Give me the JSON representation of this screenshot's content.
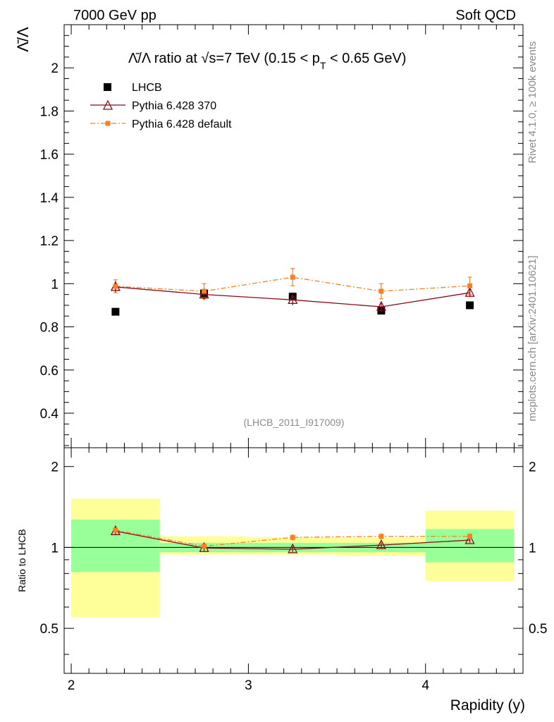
{
  "header": {
    "left": "7000 GeV pp",
    "right": "Soft QCD"
  },
  "side_labels": {
    "rivet": "Rivet 4.1.0, ≥ 100k events",
    "mcplots": "mcplots.cern.ch [arXiv:2401.10621]"
  },
  "watermark": "(LHCB_2011_I917009)",
  "colors": {
    "data": "#000000",
    "pythia370": "#8b0a1a",
    "pythia_default": "#f58025",
    "band_inner": "#99ff99",
    "band_outer": "#ffff99"
  },
  "chart_data": [
    {
      "type": "scatter",
      "title_parts": {
        "prefix": "Λ̄/Λ ratio at √s=7 TeV (0.15 < p",
        "subscript": "T",
        "suffix": " < 0.65 GeV)"
      },
      "ylabel": "Λ̄/Λ",
      "xlabel": "Rapidity (y)",
      "xlim": [
        1.96,
        4.55
      ],
      "ylim": [
        0.24,
        2.2
      ],
      "yticks": [
        0.4,
        0.6,
        0.8,
        1,
        1.2,
        1.4,
        1.6,
        1.8,
        2
      ],
      "ytick_labels": [
        "0.4",
        "0.6",
        "0.8",
        "1",
        "1.2",
        "1.4",
        "1.6",
        "1.8",
        "2"
      ],
      "legend": [
        "LHCB",
        "Pythia 6.428 370",
        "Pythia 6.428 default"
      ],
      "series": [
        {
          "name": "LHCB",
          "marker": "square",
          "x": [
            2.25,
            2.75,
            3.25,
            3.75,
            4.25
          ],
          "y": [
            0.87,
            0.955,
            0.94,
            0.875,
            0.9
          ]
        },
        {
          "name": "Pythia 6.428 370",
          "marker": "triangle",
          "x": [
            2.25,
            2.75,
            3.25,
            3.75,
            4.25
          ],
          "y": [
            0.985,
            0.95,
            0.925,
            0.893,
            0.958
          ],
          "err": [
            0.025,
            0.025,
            0.025,
            0.025,
            0.02
          ]
        },
        {
          "name": "Pythia 6.428 default",
          "marker": "square-dashed",
          "x": [
            2.25,
            2.75,
            3.25,
            3.75,
            4.25
          ],
          "y": [
            0.988,
            0.965,
            1.03,
            0.965,
            0.99
          ],
          "err": [
            0.03,
            0.035,
            0.04,
            0.035,
            0.04
          ]
        }
      ]
    },
    {
      "type": "scatter",
      "ylabel": "Ratio to LHCB",
      "xlabel": "Rapidity (y)",
      "xlim": [
        1.96,
        4.55
      ],
      "ylim": [
        0.34,
        2.35
      ],
      "yscale": "log",
      "xticks": [
        2,
        3,
        4
      ],
      "xtick_labels": [
        "2",
        "3",
        "4"
      ],
      "yticks": [
        0.5,
        1,
        2
      ],
      "ytick_labels": [
        "0.5",
        "1",
        "2"
      ],
      "bands": [
        {
          "x0": 2.0,
          "x1": 2.5,
          "inner": [
            0.81,
            1.27
          ],
          "outer": [
            0.55,
            1.52
          ]
        },
        {
          "x0": 2.5,
          "x1": 3.0,
          "inner": [
            0.96,
            1.04
          ],
          "outer": [
            0.94,
            1.1
          ]
        },
        {
          "x0": 3.0,
          "x1": 3.5,
          "inner": [
            0.96,
            1.04
          ],
          "outer": [
            0.94,
            1.09
          ]
        },
        {
          "x0": 3.5,
          "x1": 4.0,
          "inner": [
            0.96,
            1.04
          ],
          "outer": [
            0.93,
            1.09
          ]
        },
        {
          "x0": 4.0,
          "x1": 4.5,
          "inner": [
            0.88,
            1.17
          ],
          "outer": [
            0.75,
            1.37
          ]
        }
      ],
      "series": [
        {
          "name": "Pythia 6.428 370",
          "x": [
            2.25,
            2.75,
            3.25,
            3.75,
            4.25
          ],
          "y": [
            1.15,
            0.995,
            0.985,
            1.02,
            1.065
          ],
          "err": [
            0.03,
            0.025,
            0.025,
            0.025,
            0.025
          ]
        },
        {
          "name": "Pythia 6.428 default",
          "x": [
            2.25,
            2.75,
            3.25,
            3.75,
            4.25
          ],
          "y": [
            1.16,
            1.01,
            1.09,
            1.1,
            1.1
          ],
          "err": [
            0.03,
            0.03,
            0.03,
            0.03,
            0.03
          ]
        }
      ]
    }
  ]
}
